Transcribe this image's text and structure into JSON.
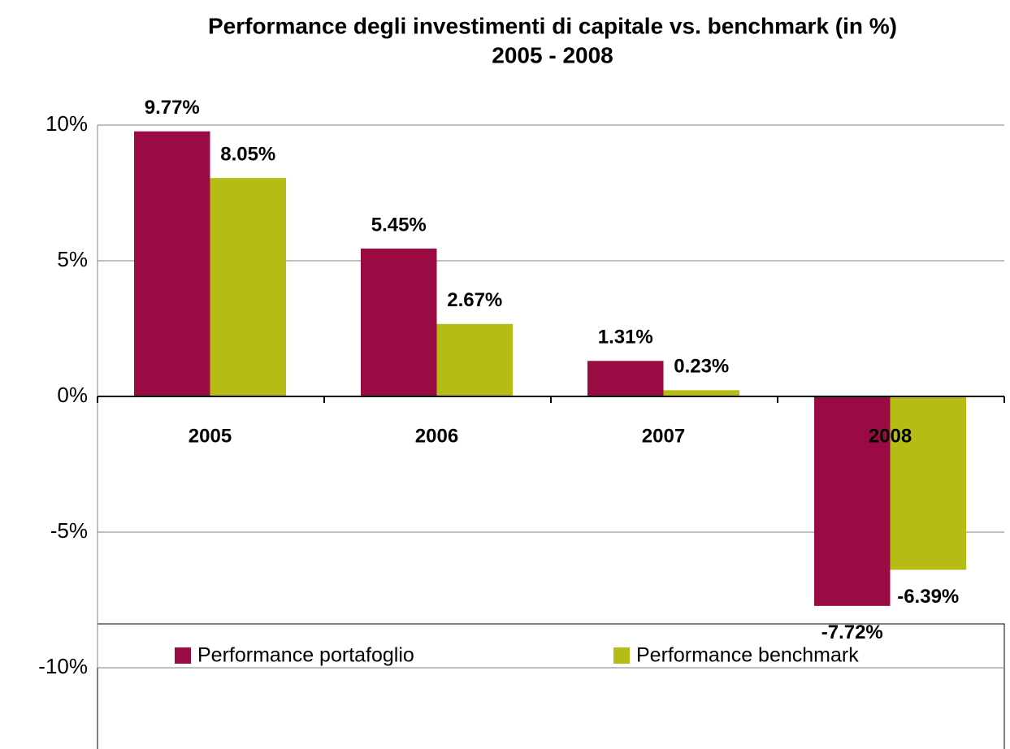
{
  "chart_data": {
    "type": "bar",
    "title": "Performance degli investimenti di capitale vs. benchmark (in %)",
    "subtitle": "2005 - 2008",
    "categories": [
      "2005",
      "2006",
      "2007",
      "2008"
    ],
    "series": [
      {
        "name": "Performance portafoglio",
        "color": "#9b0b43",
        "values": [
          9.77,
          5.45,
          1.31,
          -7.72
        ],
        "value_labels": [
          "9.77%",
          "5.45%",
          "1.31%",
          "-7.72%"
        ]
      },
      {
        "name": "Performance benchmark",
        "color": "#b5bd14",
        "values": [
          8.05,
          2.67,
          0.23,
          -6.39
        ],
        "value_labels": [
          "8.05%",
          "2.67%",
          "0.23%",
          "-6.39%"
        ]
      }
    ],
    "ylim": [
      -10,
      10
    ],
    "yticks": [
      {
        "value": -10,
        "label": "-10%"
      },
      {
        "value": -5,
        "label": "-5%"
      },
      {
        "value": 0,
        "label": "0%"
      },
      {
        "value": 5,
        "label": "5%"
      },
      {
        "value": 10,
        "label": "10%"
      }
    ],
    "grid": true,
    "legend": "bottom"
  }
}
